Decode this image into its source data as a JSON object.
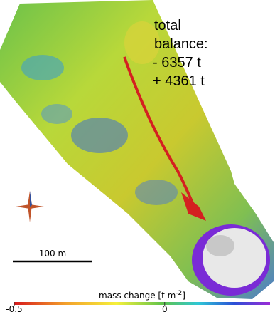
{
  "map": {
    "balance_lines": [
      "total",
      "balance:",
      "- 6357 t",
      "+ 4361 t"
    ],
    "scale_bar": "100 m",
    "colorbar": {
      "title": "mass change [t m",
      "title_exponent": "-2",
      "title_end": "]",
      "lim": [
        -0.5,
        0.35
      ],
      "ticks": [
        {
          "value": -0.5,
          "label": "-0.5"
        },
        0
      ]
    }
  }
}
